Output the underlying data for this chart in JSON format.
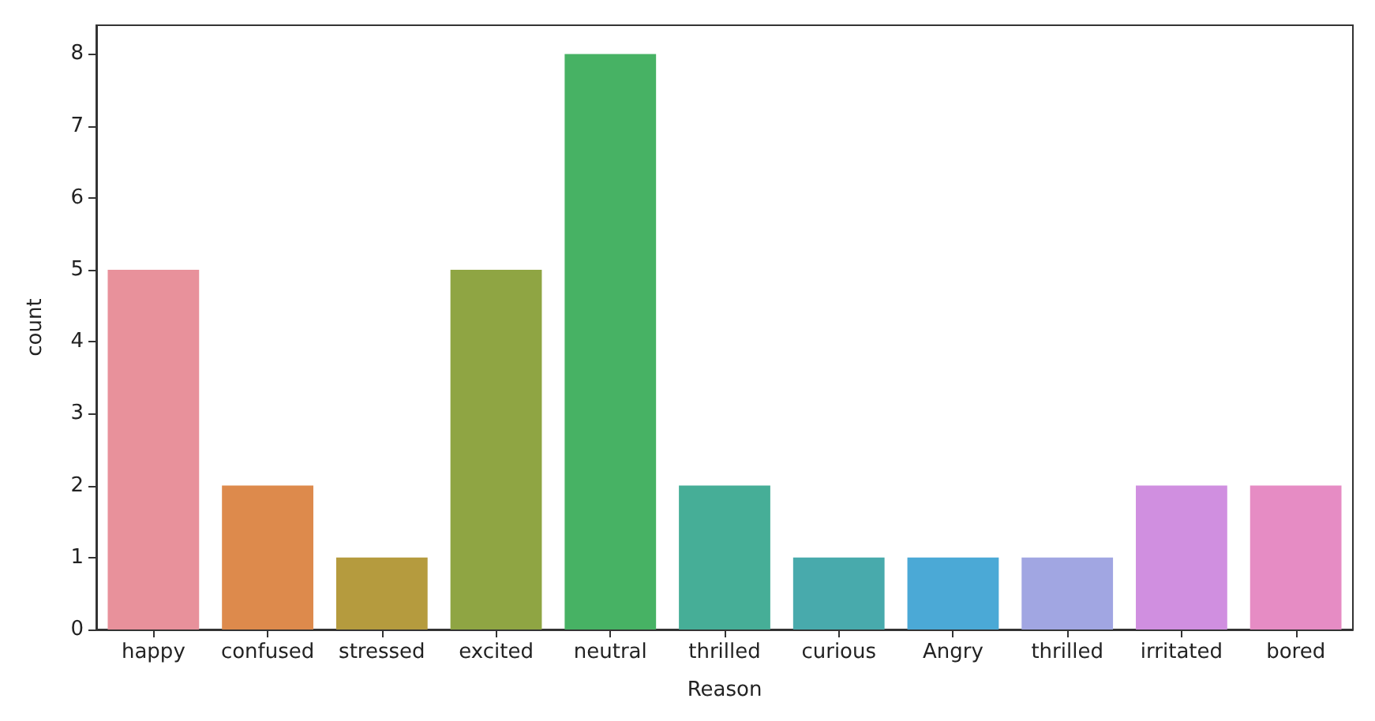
{
  "chart_data": {
    "type": "bar",
    "xlabel": "Reason",
    "ylabel": "count",
    "categories": [
      "happy",
      "confused",
      "stressed",
      "excited",
      "neutral",
      "thrilled",
      "curious",
      "Angry",
      "thrilled",
      "irritated",
      "bored"
    ],
    "values": [
      5,
      2,
      1,
      5,
      8,
      2,
      1,
      1,
      1,
      2,
      2
    ],
    "colors": [
      "#e8919b",
      "#dd8a4c",
      "#b59b3e",
      "#8fa543",
      "#47b264",
      "#46ae97",
      "#48aaac",
      "#4ba9d6",
      "#a1a6e2",
      "#d08fe0",
      "#e68cc4"
    ],
    "ylim": [
      0,
      8.4
    ],
    "yticks": [
      0,
      1,
      2,
      3,
      4,
      5,
      6,
      7,
      8
    ],
    "grid": false
  }
}
